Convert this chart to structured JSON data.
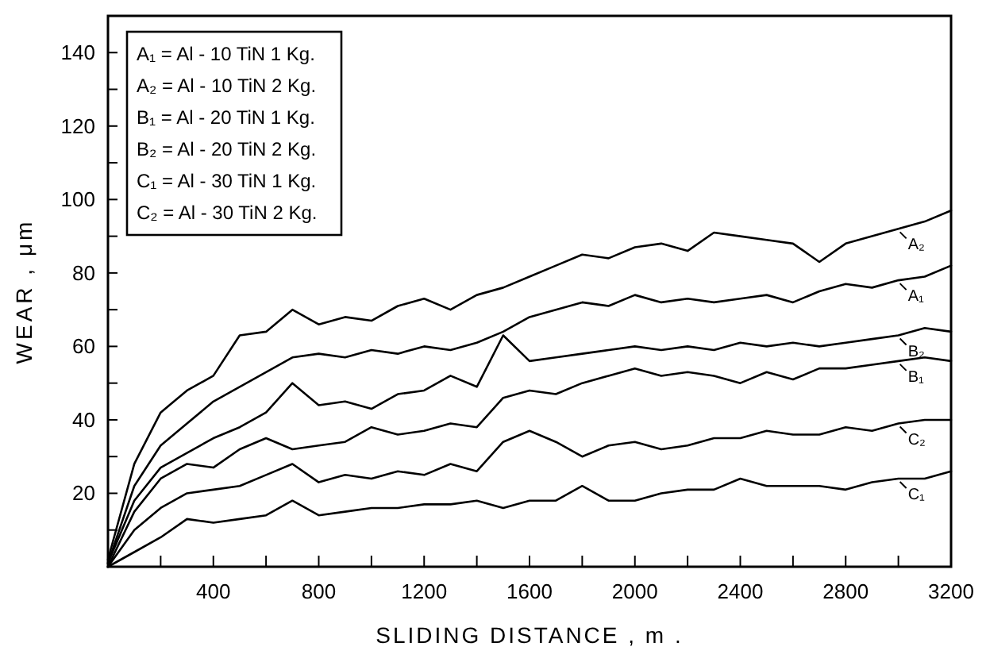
{
  "chart_data": {
    "type": "line",
    "xlabel": "SLIDING DISTANCE , m .",
    "ylabel": "WEAR , μm",
    "x": [
      0,
      100,
      200,
      300,
      400,
      500,
      600,
      700,
      800,
      900,
      1000,
      1100,
      1200,
      1300,
      1400,
      1500,
      1600,
      1700,
      1800,
      1900,
      2000,
      2100,
      2200,
      2300,
      2400,
      2500,
      2600,
      2700,
      2800,
      2900,
      3000,
      3100,
      3200
    ],
    "series": [
      {
        "name": "A₂",
        "color": "#000000",
        "values": [
          2,
          28,
          42,
          48,
          52,
          63,
          64,
          70,
          66,
          68,
          67,
          71,
          73,
          70,
          74,
          76,
          79,
          82,
          85,
          84,
          87,
          88,
          86,
          91,
          90,
          89,
          88,
          83,
          88,
          90,
          92,
          94,
          97
        ]
      },
      {
        "name": "A₁",
        "color": "#000000",
        "values": [
          1,
          22,
          33,
          39,
          45,
          49,
          53,
          57,
          58,
          57,
          59,
          58,
          60,
          59,
          61,
          64,
          68,
          70,
          72,
          71,
          74,
          72,
          73,
          72,
          73,
          74,
          72,
          75,
          77,
          76,
          78,
          79,
          82
        ]
      },
      {
        "name": "B₂",
        "color": "#000000",
        "values": [
          1,
          18,
          27,
          31,
          35,
          38,
          42,
          50,
          44,
          45,
          43,
          47,
          48,
          52,
          49,
          63,
          56,
          57,
          58,
          59,
          60,
          59,
          60,
          59,
          61,
          60,
          61,
          60,
          61,
          62,
          63,
          65,
          64
        ]
      },
      {
        "name": "B₁",
        "color": "#000000",
        "values": [
          0,
          15,
          24,
          28,
          27,
          32,
          35,
          32,
          33,
          34,
          38,
          36,
          37,
          39,
          38,
          46,
          48,
          47,
          50,
          52,
          54,
          52,
          53,
          52,
          50,
          53,
          51,
          54,
          54,
          55,
          56,
          57,
          56
        ]
      },
      {
        "name": "C₂",
        "color": "#000000",
        "values": [
          0,
          10,
          16,
          20,
          21,
          22,
          25,
          28,
          23,
          25,
          24,
          26,
          25,
          28,
          26,
          34,
          37,
          34,
          30,
          33,
          34,
          32,
          33,
          35,
          35,
          37,
          36,
          36,
          38,
          37,
          39,
          40,
          40
        ]
      },
      {
        "name": "C₁",
        "color": "#000000",
        "values": [
          0,
          4,
          8,
          13,
          12,
          13,
          14,
          18,
          14,
          15,
          16,
          16,
          17,
          17,
          18,
          16,
          18,
          18,
          22,
          18,
          18,
          20,
          21,
          21,
          24,
          22,
          22,
          22,
          21,
          23,
          24,
          24,
          26
        ]
      }
    ],
    "xlim": [
      0,
      3200
    ],
    "xticks": [
      {
        "value": 200,
        "label": null
      },
      400,
      {
        "value": 600,
        "label": null
      },
      800,
      {
        "value": 1000,
        "label": null
      },
      1200,
      {
        "value": 1400,
        "label": null
      },
      1600,
      {
        "value": 1800,
        "label": null
      },
      2000,
      {
        "value": 2200,
        "label": null
      },
      2400,
      {
        "value": 2600,
        "label": null
      },
      2800,
      {
        "value": 3000,
        "label": null
      },
      3200
    ],
    "ylim": [
      0,
      150
    ],
    "yticks": [
      {
        "value": 10,
        "label": null
      },
      20,
      {
        "value": 30,
        "label": null
      },
      40,
      {
        "value": 50,
        "label": null
      },
      60,
      {
        "value": 70,
        "label": null
      },
      80,
      {
        "value": 90,
        "label": null
      },
      100,
      {
        "value": 110,
        "label": null
      },
      120,
      {
        "value": 130,
        "label": null
      },
      140
    ],
    "annotations": [
      "A₁ = Al - 10 TiN 1 Kg.",
      "A₂ = Al - 10 TiN 2 Kg.",
      "B₁ = Al - 20 TiN 1 Kg.",
      "B₂ = Al - 20 TiN 2 Kg.",
      "C₁ = Al - 30 TiN 1 Kg.",
      "C₂ = Al - 30 TiN 2 Kg."
    ],
    "grid": false,
    "legend": "right",
    "marker": "none",
    "line_style": "solid"
  }
}
